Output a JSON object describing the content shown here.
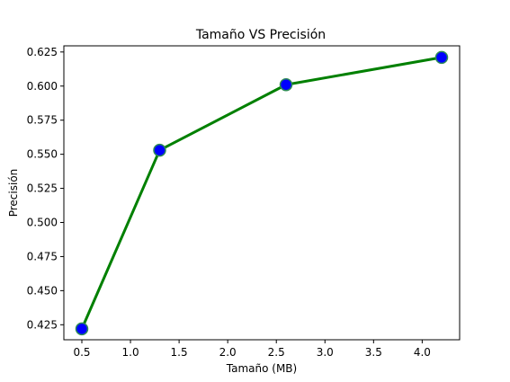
{
  "chart_data": {
    "type": "line",
    "title": "Tamaño VS Precisión",
    "xlabel": "Tamaño (MB)",
    "ylabel": "Precisión",
    "xlim": [
      0.315,
      4.385
    ],
    "ylim": [
      0.414,
      0.6295
    ],
    "x_ticks": [
      0.5,
      1.0,
      1.5,
      2.0,
      2.5,
      3.0,
      3.5,
      4.0
    ],
    "x_tick_labels": [
      "0.5",
      "1.0",
      "1.5",
      "2.0",
      "2.5",
      "3.0",
      "3.5",
      "4.0"
    ],
    "y_ticks": [
      0.425,
      0.45,
      0.475,
      0.5,
      0.525,
      0.55,
      0.575,
      0.6,
      0.625
    ],
    "y_tick_labels": [
      "0.425",
      "0.450",
      "0.475",
      "0.500",
      "0.525",
      "0.550",
      "0.575",
      "0.600",
      "0.625"
    ],
    "grid": false,
    "series": [
      {
        "x": [
          0.5,
          1.3,
          2.6,
          4.2
        ],
        "y": [
          0.422,
          0.553,
          0.601,
          0.621
        ],
        "line_color": "#008000",
        "marker_color": "#0000ff",
        "marker_edge_color": "#2e8b57"
      }
    ]
  }
}
